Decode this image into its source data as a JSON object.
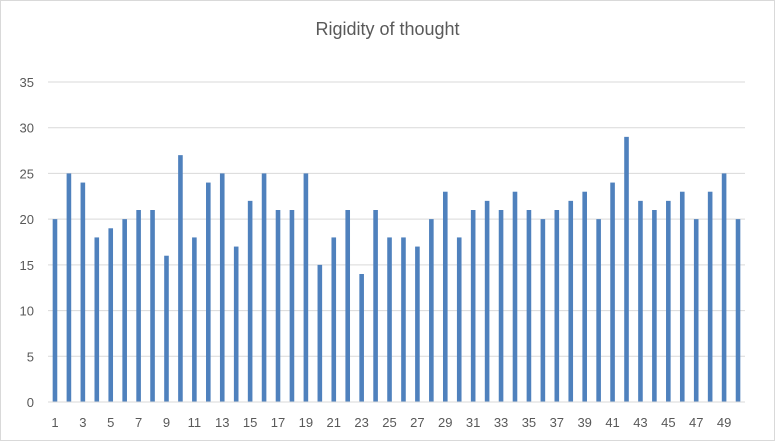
{
  "chart_data": {
    "type": "bar",
    "title": "Rigidity of thought",
    "xlabel": "",
    "ylabel": "",
    "ylim": [
      0,
      35
    ],
    "yticks": [
      0,
      5,
      10,
      15,
      20,
      25,
      30,
      35
    ],
    "grid": true,
    "legend": "none",
    "bar_color": "#4f81bd",
    "categories": [
      1,
      2,
      3,
      4,
      5,
      6,
      7,
      8,
      9,
      10,
      11,
      12,
      13,
      14,
      15,
      16,
      17,
      18,
      19,
      20,
      21,
      22,
      23,
      24,
      25,
      26,
      27,
      28,
      29,
      30,
      31,
      32,
      33,
      34,
      35,
      36,
      37,
      38,
      39,
      40,
      41,
      42,
      43,
      44,
      45,
      46,
      47,
      48,
      49,
      50
    ],
    "x_tick_labels_shown": [
      1,
      3,
      5,
      7,
      9,
      11,
      13,
      15,
      17,
      19,
      21,
      23,
      25,
      27,
      29,
      31,
      33,
      35,
      37,
      39,
      41,
      43,
      45,
      47,
      49
    ],
    "series": [
      {
        "values": [
          20,
          25,
          24,
          18,
          19,
          20,
          21,
          21,
          16,
          27,
          18,
          24,
          25,
          17,
          22,
          25,
          21,
          21,
          25,
          15,
          18,
          21,
          14,
          21,
          18,
          18,
          17,
          20,
          23,
          18,
          21,
          22,
          21,
          23,
          21,
          20,
          21,
          22,
          23,
          20,
          24,
          29,
          22,
          21,
          22,
          23,
          20,
          23,
          25,
          20
        ]
      }
    ]
  }
}
